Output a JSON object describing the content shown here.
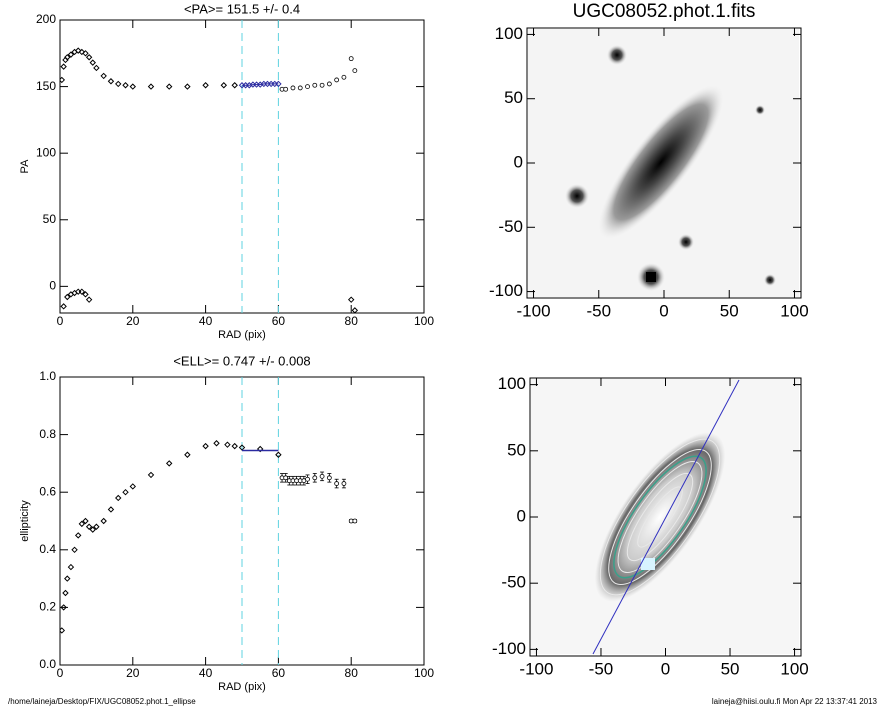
{
  "chart_data": [
    {
      "type": "scatter",
      "title": "<PA>= 151.5 +/-   0.4",
      "x_label": "RAD (pix)",
      "y_label": "PA",
      "xlim": [
        0,
        100
      ],
      "xticks": [
        0,
        20,
        40,
        60,
        80,
        100
      ],
      "ylim": [
        -20,
        200
      ],
      "yticks": [
        0,
        50,
        100,
        150,
        200
      ],
      "vlines": [
        50,
        60
      ],
      "vline_color": "#5fd3e0",
      "series": [
        {
          "name": "inner",
          "color": "#000000",
          "marker": "diamond",
          "x": [
            0.5,
            1,
            1.5,
            2,
            3,
            4,
            5,
            6,
            7,
            8,
            9,
            10,
            12,
            14,
            16,
            18,
            20,
            25,
            30,
            35,
            40,
            45,
            48
          ],
          "values": [
            155,
            165,
            170,
            172,
            174,
            176,
            177,
            176,
            175,
            172,
            168,
            164,
            158,
            154,
            152,
            151,
            150,
            150,
            150,
            150,
            151,
            151,
            151
          ]
        },
        {
          "name": "wrapped",
          "color": "#000000",
          "marker": "diamond",
          "x": [
            1,
            2,
            3,
            4,
            5,
            6,
            7,
            8,
            80,
            81
          ],
          "values": [
            -15,
            -8,
            -6,
            -5,
            -4,
            -4,
            -6,
            -10,
            -10,
            -18
          ]
        },
        {
          "name": "fit",
          "color": "#2a2aa0",
          "marker": "diamond",
          "x": [
            50,
            51,
            52,
            53,
            54,
            55,
            56,
            57,
            58,
            59,
            60
          ],
          "values": [
            151,
            151,
            151,
            151.5,
            151.5,
            151.5,
            152,
            152,
            152,
            152,
            152
          ]
        },
        {
          "name": "outer",
          "color": "#000000",
          "marker": "circle",
          "x": [
            61,
            62,
            64,
            66,
            68,
            70,
            72,
            74,
            76,
            78,
            80,
            81
          ],
          "values": [
            148,
            148,
            149,
            149,
            150,
            151,
            151,
            152,
            155,
            157,
            171,
            162
          ]
        }
      ]
    },
    {
      "type": "image",
      "title": "UGC08052.phot.1.fits",
      "xlim": [
        -105,
        105
      ],
      "xticks": [
        -100,
        -50,
        0,
        50,
        100
      ],
      "ylim": [
        -105,
        105
      ],
      "yticks": [
        -100,
        -50,
        0,
        50,
        100
      ]
    },
    {
      "type": "scatter",
      "title": "<ELL>= 0.747 +/-  0.008",
      "x_label": "RAD (pix)",
      "y_label": "ellipticity",
      "xlim": [
        0,
        100
      ],
      "xticks": [
        0,
        20,
        40,
        60,
        80,
        100
      ],
      "ylim": [
        0,
        1
      ],
      "yticks": [
        {
          "value": 0,
          "label": "0.0"
        },
        0.2,
        0.4,
        0.6,
        0.8,
        {
          "value": 1,
          "label": "1.0"
        }
      ],
      "vlines": [
        50,
        60
      ],
      "vline_color": "#5fd3e0",
      "series": [
        {
          "name": "inner",
          "color": "#000000",
          "marker": "diamond",
          "x": [
            0.5,
            1,
            1.5,
            2,
            3,
            4,
            5,
            6,
            7,
            8,
            9,
            10,
            12,
            14,
            16,
            18,
            20,
            25,
            30,
            35,
            40,
            43,
            46,
            48,
            50,
            55,
            60
          ],
          "values": [
            0.12,
            0.2,
            0.25,
            0.3,
            0.34,
            0.4,
            0.45,
            0.49,
            0.5,
            0.48,
            0.47,
            0.48,
            0.5,
            0.54,
            0.58,
            0.6,
            0.62,
            0.66,
            0.7,
            0.73,
            0.76,
            0.77,
            0.765,
            0.76,
            0.755,
            0.75,
            0.73
          ]
        },
        {
          "name": "fit",
          "color": "#2a2aa0",
          "marker": "line",
          "x": [
            50,
            60
          ],
          "values": [
            0.745,
            0.745
          ]
        },
        {
          "name": "outer",
          "color": "#000000",
          "marker": "circle",
          "x": [
            61,
            62,
            63,
            64,
            65,
            66,
            67,
            68,
            70,
            72,
            74,
            76,
            78,
            80,
            81
          ],
          "values": [
            0.65,
            0.65,
            0.64,
            0.64,
            0.64,
            0.64,
            0.64,
            0.645,
            0.65,
            0.655,
            0.65,
            0.63,
            0.63,
            0.5,
            0.5
          ],
          "errors": [
            0.015,
            0.015,
            0.015,
            0.015,
            0.015,
            0.015,
            0.015,
            0.015,
            0.015,
            0.015,
            0.015,
            0.015,
            0.015,
            0.005,
            0.005
          ]
        }
      ]
    },
    {
      "type": "image",
      "xlim": [
        -105,
        105
      ],
      "xticks": [
        -100,
        -50,
        0,
        50,
        100
      ],
      "ylim": [
        -105,
        105
      ],
      "yticks": [
        -100,
        -50,
        0,
        50,
        100
      ]
    }
  ],
  "footer": {
    "left": "/home/laineja/Desktop/FIX/UGC08052.phot.1_ellipse",
    "right": "laineja@hiisi.oulu.fi  Mon Apr 22 13:37:41 2013"
  }
}
